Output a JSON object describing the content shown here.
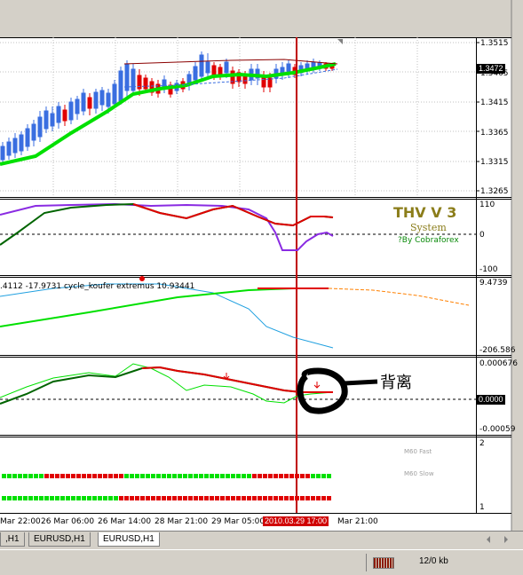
{
  "indicator_box": {
    "title": "THV V 3",
    "subtitle": "System",
    "credit": "?By Cobraforex"
  },
  "main_chart": {
    "price_labels": [
      "1.3515",
      "1.3465",
      "1.3415",
      "1.3365",
      "1.3315",
      "1.3265"
    ],
    "current_price": "1.3472"
  },
  "panel2": {
    "labels": [
      "110",
      "0",
      "-100"
    ]
  },
  "panel3": {
    "header": ".4112 -17.9731  cycle_koufer extremus 10.93441",
    "labels": [
      "9.4739",
      "-206.586"
    ]
  },
  "panel4": {
    "labels": [
      "0.000676",
      "0.0000",
      "-0.00059"
    ],
    "annotation": "背离"
  },
  "panel5": {
    "labels": [
      "2",
      "1"
    ],
    "legend": [
      "M60 Fast",
      "M60 Slow"
    ]
  },
  "time_axis": {
    "labels": [
      "Mar 22:00",
      "26 Mar 06:00",
      "26 Mar 14:00",
      "28 Mar 21:00",
      "29 Mar 05:00",
      "2010.03.29 17:00",
      "Mar 21:00"
    ],
    "highlight": "2010.03.29 17:00"
  },
  "tabs": [
    ",H1",
    "EURUSD,H1",
    "EURUSD,H1"
  ],
  "status": {
    "traffic": "12/0 kb"
  },
  "colors": {
    "up": "#3a6ee0",
    "down": "#e00000",
    "green": "#00e000",
    "darkgreen": "#006400",
    "purple": "#8a2be2",
    "cursor": "#c00000"
  }
}
